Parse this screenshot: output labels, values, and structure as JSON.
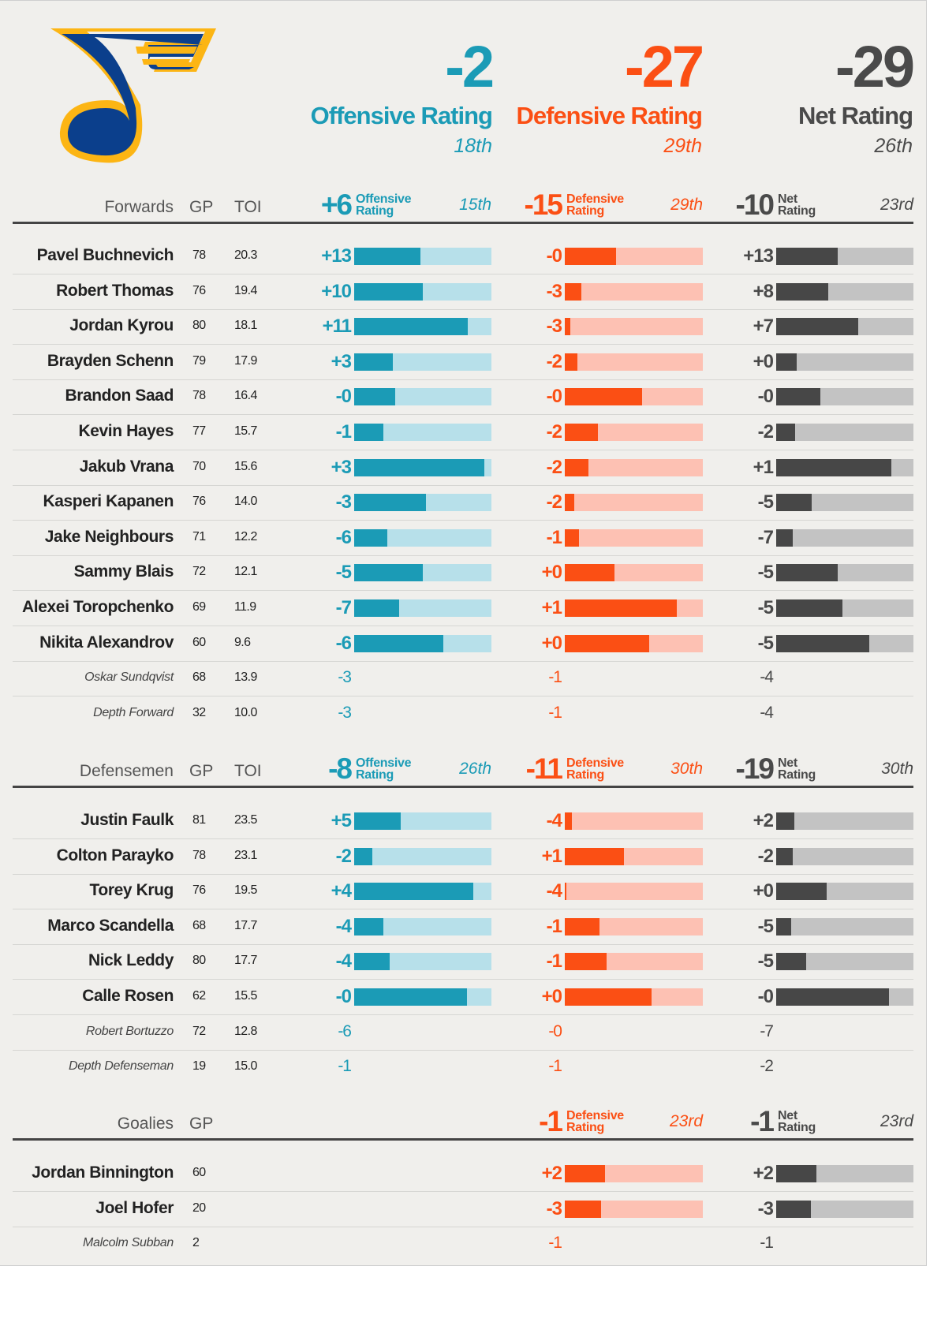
{
  "summary": {
    "offensive": {
      "value": "-2",
      "label": "Offensive Rating",
      "rank": "18th"
    },
    "defensive": {
      "value": "-27",
      "label": "Defensive Rating",
      "rank": "29th"
    },
    "net": {
      "value": "-29",
      "label": "Net Rating",
      "rank": "26th"
    }
  },
  "colors": {
    "offense": "#1b9bb6",
    "defense": "#fb4f14",
    "net": "#474747",
    "logo_blue": "#0b3f8c",
    "logo_gold": "#fcb514"
  },
  "labels": {
    "gp": "GP",
    "toi": "TOI",
    "off_l1": "Offensive",
    "def_l1": "Defensive",
    "net_l1": "Net",
    "l2": "Rating"
  },
  "chart_data": {
    "type": "table",
    "forwards": {
      "title": "Forwards",
      "offensive": {
        "total": "+6",
        "rank": "15th"
      },
      "defensive": {
        "total": "-15",
        "rank": "29th"
      },
      "net": {
        "total": "-10",
        "rank": "23rd"
      },
      "players": [
        {
          "name": "Pavel Buchnevich",
          "gp": "78",
          "toi": "20.3",
          "off": "+13",
          "off_bar": 0.48,
          "def": "-0",
          "def_bar": 0.37,
          "net": "+13",
          "net_bar": 0.45,
          "minor": false
        },
        {
          "name": "Robert Thomas",
          "gp": "76",
          "toi": "19.4",
          "off": "+10",
          "off_bar": 0.5,
          "def": "-3",
          "def_bar": 0.12,
          "net": "+8",
          "net_bar": 0.38,
          "minor": false
        },
        {
          "name": "Jordan Kyrou",
          "gp": "80",
          "toi": "18.1",
          "off": "+11",
          "off_bar": 0.83,
          "def": "-3",
          "def_bar": 0.04,
          "net": "+7",
          "net_bar": 0.6,
          "minor": false
        },
        {
          "name": "Brayden Schenn",
          "gp": "79",
          "toi": "17.9",
          "off": "+3",
          "off_bar": 0.28,
          "def": "-2",
          "def_bar": 0.09,
          "net": "+0",
          "net_bar": 0.15,
          "minor": false
        },
        {
          "name": "Brandon Saad",
          "gp": "78",
          "toi": "16.4",
          "off": "-0",
          "off_bar": 0.3,
          "def": "-0",
          "def_bar": 0.56,
          "net": "-0",
          "net_bar": 0.32,
          "minor": false
        },
        {
          "name": "Kevin Hayes",
          "gp": "77",
          "toi": "15.7",
          "off": "-1",
          "off_bar": 0.21,
          "def": "-2",
          "def_bar": 0.24,
          "net": "-2",
          "net_bar": 0.14,
          "minor": false
        },
        {
          "name": "Jakub Vrana",
          "gp": "70",
          "toi": "15.6",
          "off": "+3",
          "off_bar": 0.95,
          "def": "-2",
          "def_bar": 0.17,
          "net": "+1",
          "net_bar": 0.84,
          "minor": false
        },
        {
          "name": "Kasperi Kapanen",
          "gp": "76",
          "toi": "14.0",
          "off": "-3",
          "off_bar": 0.52,
          "def": "-2",
          "def_bar": 0.07,
          "net": "-5",
          "net_bar": 0.26,
          "minor": false
        },
        {
          "name": "Jake Neighbours",
          "gp": "71",
          "toi": "12.2",
          "off": "-6",
          "off_bar": 0.24,
          "def": "-1",
          "def_bar": 0.1,
          "net": "-7",
          "net_bar": 0.12,
          "minor": false
        },
        {
          "name": "Sammy Blais",
          "gp": "72",
          "toi": "12.1",
          "off": "-5",
          "off_bar": 0.5,
          "def": "+0",
          "def_bar": 0.36,
          "net": "-5",
          "net_bar": 0.45,
          "minor": false
        },
        {
          "name": "Alexei Toropchenko",
          "gp": "69",
          "toi": "11.9",
          "off": "-7",
          "off_bar": 0.33,
          "def": "+1",
          "def_bar": 0.81,
          "net": "-5",
          "net_bar": 0.48,
          "minor": false
        },
        {
          "name": "Nikita Alexandrov",
          "gp": "60",
          "toi": "9.6",
          "off": "-6",
          "off_bar": 0.65,
          "def": "+0",
          "def_bar": 0.61,
          "net": "-5",
          "net_bar": 0.68,
          "minor": false
        },
        {
          "name": "Oskar Sundqvist",
          "gp": "68",
          "toi": "13.9",
          "off": "-3",
          "def": "-1",
          "net": "-4",
          "minor": true
        },
        {
          "name": "Depth Forward",
          "gp": "32",
          "toi": "10.0",
          "off": "-3",
          "def": "-1",
          "net": "-4",
          "minor": true
        }
      ]
    },
    "defensemen": {
      "title": "Defensemen",
      "offensive": {
        "total": "-8",
        "rank": "26th"
      },
      "defensive": {
        "total": "-11",
        "rank": "30th"
      },
      "net": {
        "total": "-19",
        "rank": "30th"
      },
      "players": [
        {
          "name": "Justin Faulk",
          "gp": "81",
          "toi": "23.5",
          "off": "+5",
          "off_bar": 0.34,
          "def": "-4",
          "def_bar": 0.05,
          "net": "+2",
          "net_bar": 0.13,
          "minor": false
        },
        {
          "name": "Colton Parayko",
          "gp": "78",
          "toi": "23.1",
          "off": "-2",
          "off_bar": 0.13,
          "def": "+1",
          "def_bar": 0.43,
          "net": "-2",
          "net_bar": 0.12,
          "minor": false
        },
        {
          "name": "Torey Krug",
          "gp": "76",
          "toi": "19.5",
          "off": "+4",
          "off_bar": 0.87,
          "def": "-4",
          "def_bar": 0.01,
          "net": "+0",
          "net_bar": 0.37,
          "minor": false
        },
        {
          "name": "Marco Scandella",
          "gp": "68",
          "toi": "17.7",
          "off": "-4",
          "off_bar": 0.21,
          "def": "-1",
          "def_bar": 0.25,
          "net": "-5",
          "net_bar": 0.11,
          "minor": false
        },
        {
          "name": "Nick Leddy",
          "gp": "80",
          "toi": "17.7",
          "off": "-4",
          "off_bar": 0.26,
          "def": "-1",
          "def_bar": 0.3,
          "net": "-5",
          "net_bar": 0.22,
          "minor": false
        },
        {
          "name": "Calle Rosen",
          "gp": "62",
          "toi": "15.5",
          "off": "-0",
          "off_bar": 0.82,
          "def": "+0",
          "def_bar": 0.63,
          "net": "-0",
          "net_bar": 0.82,
          "minor": false
        },
        {
          "name": "Robert Bortuzzo",
          "gp": "72",
          "toi": "12.8",
          "off": "-6",
          "def": "-0",
          "net": "-7",
          "minor": true
        },
        {
          "name": "Depth Defenseman",
          "gp": "19",
          "toi": "15.0",
          "off": "-1",
          "def": "-1",
          "net": "-2",
          "minor": true
        }
      ]
    },
    "goalies": {
      "title": "Goalies",
      "defensive": {
        "total": "-1",
        "rank": "23rd"
      },
      "net": {
        "total": "-1",
        "rank": "23rd"
      },
      "players": [
        {
          "name": "Jordan Binnington",
          "gp": "60",
          "def": "+2",
          "def_bar": 0.29,
          "net": "+2",
          "net_bar": 0.29,
          "minor": false
        },
        {
          "name": "Joel Hofer",
          "gp": "20",
          "def": "-3",
          "def_bar": 0.26,
          "net": "-3",
          "net_bar": 0.25,
          "minor": false
        },
        {
          "name": "Malcolm Subban",
          "gp": "2",
          "def": "-1",
          "net": "-1",
          "minor": true
        }
      ]
    }
  }
}
